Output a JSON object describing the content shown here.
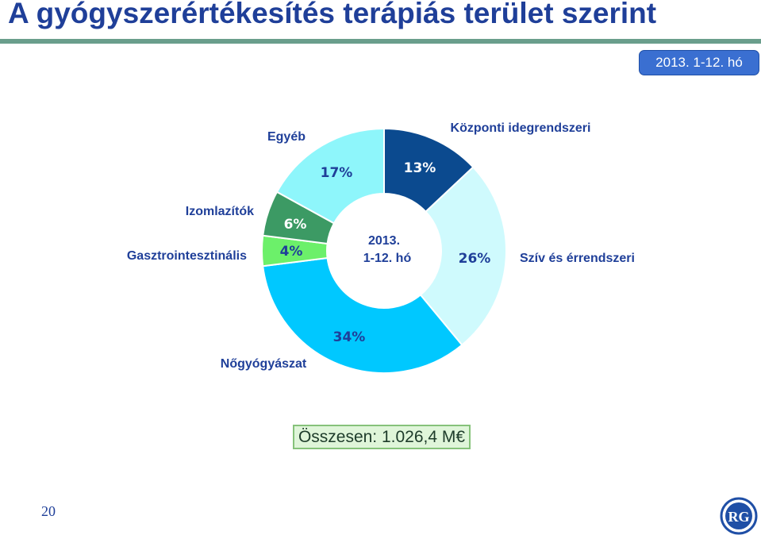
{
  "title": "A gyógyszerértékesítés terápiás terület szerint",
  "period_badge": "2013. 1-12. hó",
  "center_label": [
    "2013.",
    "1-12. hó"
  ],
  "total": "Összesen: 1.026,4 M€",
  "page_number": "20",
  "logo_text": "RG",
  "colors": {
    "title": "#1f3f99",
    "rule": "#6a9e8c",
    "badge": "#3a6fd1"
  },
  "chart_data": {
    "type": "pie",
    "subtype": "donut",
    "series": [
      {
        "label": "Központi idegrendszeri",
        "value": 13,
        "value_label": "13%",
        "color": "#0b4a8f"
      },
      {
        "label": "Szív és érrendszeri",
        "value": 26,
        "value_label": "26%",
        "color": "#cffafd"
      },
      {
        "label": "Nőgyógyászat",
        "value": 34,
        "value_label": "34%",
        "color": "#00c8ff"
      },
      {
        "label": "Gasztrointesztinális",
        "value": 4,
        "value_label": "4%",
        "color": "#6cf06a"
      },
      {
        "label": "Izomlazítók",
        "value": 6,
        "value_label": "6%",
        "color": "#3c9a64"
      },
      {
        "label": "Egyéb",
        "value": 17,
        "value_label": "17%",
        "color": "#8ef6fb"
      }
    ]
  }
}
